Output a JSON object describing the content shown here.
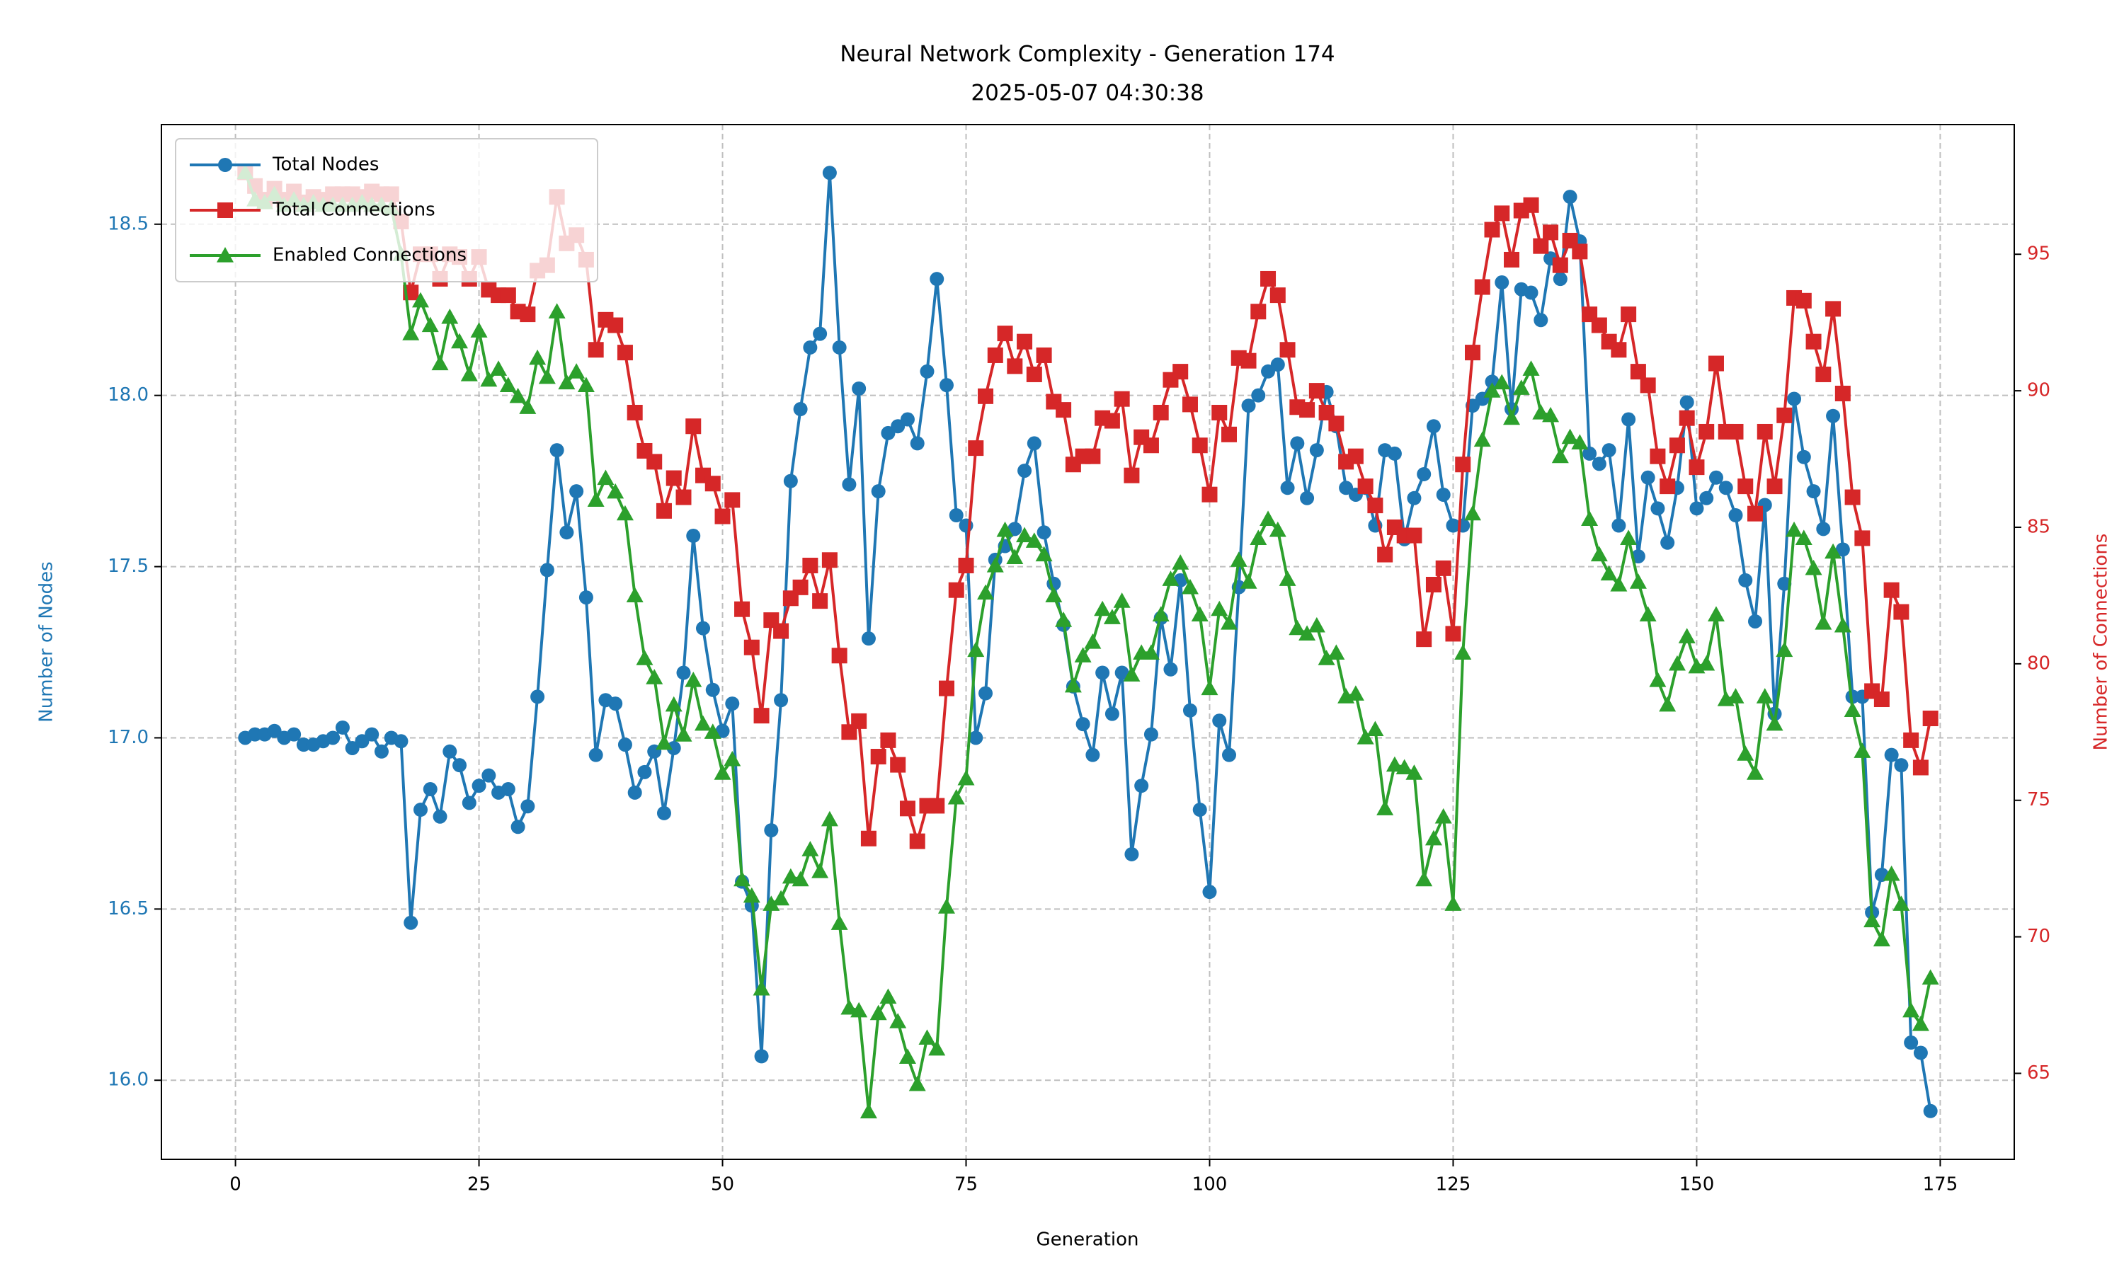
{
  "chart_data": {
    "type": "line",
    "title": "Neural Network Complexity - Generation 174",
    "subtitle": "2025-05-07 04:30:38",
    "xlabel": "Generation",
    "ylabel": "Number of Nodes",
    "y2label": "Number of Connections",
    "ylabel_color": "#1f77b4",
    "y2label_color": "#d62728",
    "grid": true,
    "legend": "upper left",
    "xlim": [
      -7.6,
      182.6
    ],
    "ylim": [
      15.769,
      18.791
    ],
    "y2lim": [
      61.85,
      99.75
    ],
    "xticks": [
      0,
      25,
      50,
      75,
      100,
      125,
      150,
      175
    ],
    "yticks": [
      {
        "value": 16,
        "label": "16.0"
      },
      16.5,
      {
        "value": 17,
        "label": "17.0"
      },
      17.5,
      {
        "value": 18,
        "label": "18.0"
      },
      18.5
    ],
    "y2ticks": [
      65,
      70,
      75,
      80,
      85,
      90,
      95
    ],
    "x": [
      1,
      2,
      3,
      4,
      5,
      6,
      7,
      8,
      9,
      10,
      11,
      12,
      13,
      14,
      15,
      16,
      17,
      18,
      19,
      20,
      21,
      22,
      23,
      24,
      25,
      26,
      27,
      28,
      29,
      30,
      31,
      32,
      33,
      34,
      35,
      36,
      37,
      38,
      39,
      40,
      41,
      42,
      43,
      44,
      45,
      46,
      47,
      48,
      49,
      50,
      51,
      52,
      53,
      54,
      55,
      56,
      57,
      58,
      59,
      60,
      61,
      62,
      63,
      64,
      65,
      66,
      67,
      68,
      69,
      70,
      71,
      72,
      73,
      74,
      75,
      76,
      77,
      78,
      79,
      80,
      81,
      82,
      83,
      84,
      85,
      86,
      87,
      88,
      89,
      90,
      91,
      92,
      93,
      94,
      95,
      96,
      97,
      98,
      99,
      100,
      101,
      102,
      103,
      104,
      105,
      106,
      107,
      108,
      109,
      110,
      111,
      112,
      113,
      114,
      115,
      116,
      117,
      118,
      119,
      120,
      121,
      122,
      123,
      124,
      125,
      126,
      127,
      128,
      129,
      130,
      131,
      132,
      133,
      134,
      135,
      136,
      137,
      138,
      139,
      140,
      141,
      142,
      143,
      144,
      145,
      146,
      147,
      148,
      149,
      150,
      151,
      152,
      153,
      154,
      155,
      156,
      157,
      158,
      159,
      160,
      161,
      162,
      163,
      164,
      165,
      166,
      167,
      168,
      169,
      170,
      171,
      172,
      173,
      174
    ],
    "series": [
      {
        "name": "Total Nodes",
        "color": "#1f77b4",
        "marker": "circle",
        "axis": "y",
        "values": [
          17.0,
          17.01,
          17.01,
          17.02,
          17.0,
          17.01,
          16.98,
          16.98,
          16.99,
          17.0,
          17.03,
          16.97,
          16.99,
          17.01,
          16.96,
          17.0,
          16.99,
          16.46,
          16.79,
          16.85,
          16.77,
          16.96,
          16.92,
          16.81,
          16.86,
          16.89,
          16.84,
          16.85,
          16.74,
          16.8,
          17.12,
          17.49,
          17.84,
          17.6,
          17.72,
          17.41,
          16.95,
          17.11,
          17.1,
          16.98,
          16.84,
          16.9,
          16.96,
          16.78,
          16.97,
          17.19,
          17.59,
          17.32,
          17.14,
          17.02,
          17.1,
          16.58,
          16.51,
          16.07,
          16.73,
          17.11,
          17.75,
          17.96,
          18.14,
          18.18,
          18.65,
          18.14,
          17.74,
          18.02,
          17.29,
          17.72,
          17.89,
          17.91,
          17.93,
          17.86,
          18.07,
          18.34,
          18.03,
          17.65,
          17.62,
          17.0,
          17.13,
          17.52,
          17.56,
          17.61,
          17.78,
          17.86,
          17.6,
          17.45,
          17.33,
          17.15,
          17.04,
          16.95,
          17.19,
          17.07,
          17.19,
          16.66,
          16.86,
          17.01,
          17.35,
          17.2,
          17.46,
          17.08,
          16.79,
          16.55,
          17.05,
          16.95,
          17.44,
          17.97,
          18.0,
          18.07,
          18.09,
          17.73,
          17.86,
          17.7,
          17.84,
          18.01,
          17.91,
          17.73,
          17.71,
          17.73,
          17.62,
          17.84,
          17.83,
          17.58,
          17.7,
          17.77,
          17.91,
          17.71,
          17.62,
          17.62,
          17.97,
          17.99,
          18.04,
          18.33,
          17.96,
          18.31,
          18.3,
          18.22,
          18.4,
          18.34,
          18.58,
          18.45,
          17.83,
          17.8,
          17.84,
          17.62,
          17.93,
          17.53,
          17.76,
          17.67,
          17.57,
          17.73,
          17.98,
          17.67,
          17.7,
          17.76,
          17.73,
          17.65,
          17.46,
          17.34,
          17.68,
          17.07,
          17.45,
          17.99,
          17.82,
          17.72,
          17.61,
          17.94,
          17.55,
          17.12,
          17.12,
          16.49,
          16.6,
          16.95,
          16.92,
          16.11,
          16.08,
          15.91
        ]
      },
      {
        "name": "Total Connections",
        "color": "#d62728",
        "marker": "square",
        "axis": "y2",
        "values": [
          98.0,
          97.5,
          97.0,
          97.4,
          97.0,
          97.3,
          96.9,
          97.1,
          97.0,
          97.2,
          97.2,
          97.2,
          97.1,
          97.3,
          97.2,
          97.2,
          96.2,
          93.6,
          95.0,
          95.0,
          94.1,
          95.0,
          94.9,
          94.1,
          94.9,
          93.7,
          93.5,
          93.5,
          92.9,
          92.8,
          94.4,
          94.6,
          97.1,
          95.4,
          95.7,
          94.8,
          91.5,
          92.6,
          92.4,
          91.4,
          89.2,
          87.8,
          87.4,
          85.6,
          86.8,
          86.1,
          88.7,
          86.9,
          86.6,
          85.4,
          86.0,
          82.0,
          80.6,
          78.1,
          81.6,
          81.2,
          82.4,
          82.8,
          83.6,
          82.3,
          83.8,
          80.3,
          77.5,
          77.9,
          73.6,
          76.6,
          77.2,
          76.3,
          74.7,
          73.5,
          74.8,
          74.8,
          79.1,
          82.7,
          83.6,
          87.9,
          89.8,
          91.3,
          92.1,
          90.9,
          91.8,
          90.6,
          91.3,
          89.6,
          89.3,
          87.3,
          87.6,
          87.6,
          89.0,
          88.9,
          89.7,
          86.9,
          88.3,
          88.0,
          89.2,
          90.4,
          90.7,
          89.5,
          88.0,
          86.2,
          89.2,
          88.4,
          91.2,
          91.1,
          92.9,
          94.1,
          93.5,
          91.5,
          89.4,
          89.3,
          90.0,
          89.2,
          88.8,
          87.4,
          87.6,
          86.5,
          85.8,
          84.0,
          85.0,
          84.7,
          84.7,
          80.9,
          82.9,
          83.5,
          81.1,
          87.3,
          91.4,
          93.8,
          95.9,
          96.5,
          94.8,
          96.6,
          96.8,
          95.3,
          95.8,
          94.6,
          95.5,
          95.1,
          92.8,
          92.4,
          91.8,
          91.5,
          92.8,
          90.7,
          90.2,
          87.6,
          86.5,
          88.0,
          89.0,
          87.2,
          88.5,
          91.0,
          88.5,
          88.5,
          86.5,
          85.5,
          88.5,
          86.5,
          89.1,
          93.4,
          93.3,
          91.8,
          90.6,
          93.0,
          89.9,
          86.1,
          84.6,
          79.0,
          78.7,
          82.7,
          81.9,
          77.2,
          76.2,
          78.0
        ]
      },
      {
        "name": "Enabled Connections",
        "color": "#2ca02c",
        "marker": "triangle",
        "axis": "y2",
        "values": [
          98.0,
          97.0,
          96.9,
          97.2,
          96.8,
          97.0,
          96.8,
          96.9,
          96.8,
          96.8,
          96.8,
          96.8,
          96.9,
          96.8,
          96.8,
          96.7,
          95.0,
          92.1,
          93.3,
          92.4,
          91.0,
          92.7,
          91.8,
          90.6,
          92.2,
          90.4,
          90.8,
          90.2,
          89.8,
          89.4,
          91.2,
          90.5,
          92.9,
          90.3,
          90.7,
          90.2,
          86.0,
          86.8,
          86.3,
          85.5,
          82.5,
          80.2,
          79.5,
          77.1,
          78.5,
          77.4,
          79.4,
          77.8,
          77.5,
          76.0,
          76.5,
          72.1,
          71.5,
          68.1,
          71.2,
          71.4,
          72.2,
          72.1,
          73.2,
          72.4,
          74.3,
          70.5,
          67.4,
          67.3,
          63.6,
          67.2,
          67.8,
          66.9,
          65.6,
          64.6,
          66.3,
          65.9,
          71.1,
          75.1,
          75.8,
          80.5,
          82.6,
          83.6,
          84.9,
          83.9,
          84.7,
          84.5,
          84.0,
          82.5,
          81.6,
          79.2,
          80.3,
          80.8,
          82.0,
          81.7,
          82.3,
          79.6,
          80.4,
          80.4,
          81.8,
          83.1,
          83.7,
          82.8,
          81.8,
          79.1,
          82.0,
          81.5,
          83.8,
          83.0,
          84.6,
          85.3,
          84.9,
          83.1,
          81.3,
          81.1,
          81.4,
          80.2,
          80.4,
          78.8,
          78.9,
          77.3,
          77.6,
          74.7,
          76.3,
          76.2,
          76.0,
          72.1,
          73.6,
          74.4,
          71.2,
          80.4,
          85.5,
          88.2,
          90.0,
          90.3,
          89.0,
          90.1,
          90.8,
          89.2,
          89.1,
          87.6,
          88.3,
          88.1,
          85.3,
          84.0,
          83.3,
          82.9,
          84.6,
          83.0,
          81.8,
          79.4,
          78.5,
          80.0,
          81.0,
          79.9,
          80.0,
          81.8,
          78.7,
          78.8,
          76.7,
          76.0,
          78.8,
          77.8,
          80.5,
          84.9,
          84.6,
          83.5,
          81.5,
          84.1,
          81.4,
          78.3,
          76.8,
          70.6,
          69.9,
          72.3,
          71.2,
          67.3,
          66.8,
          68.5
        ]
      }
    ]
  }
}
